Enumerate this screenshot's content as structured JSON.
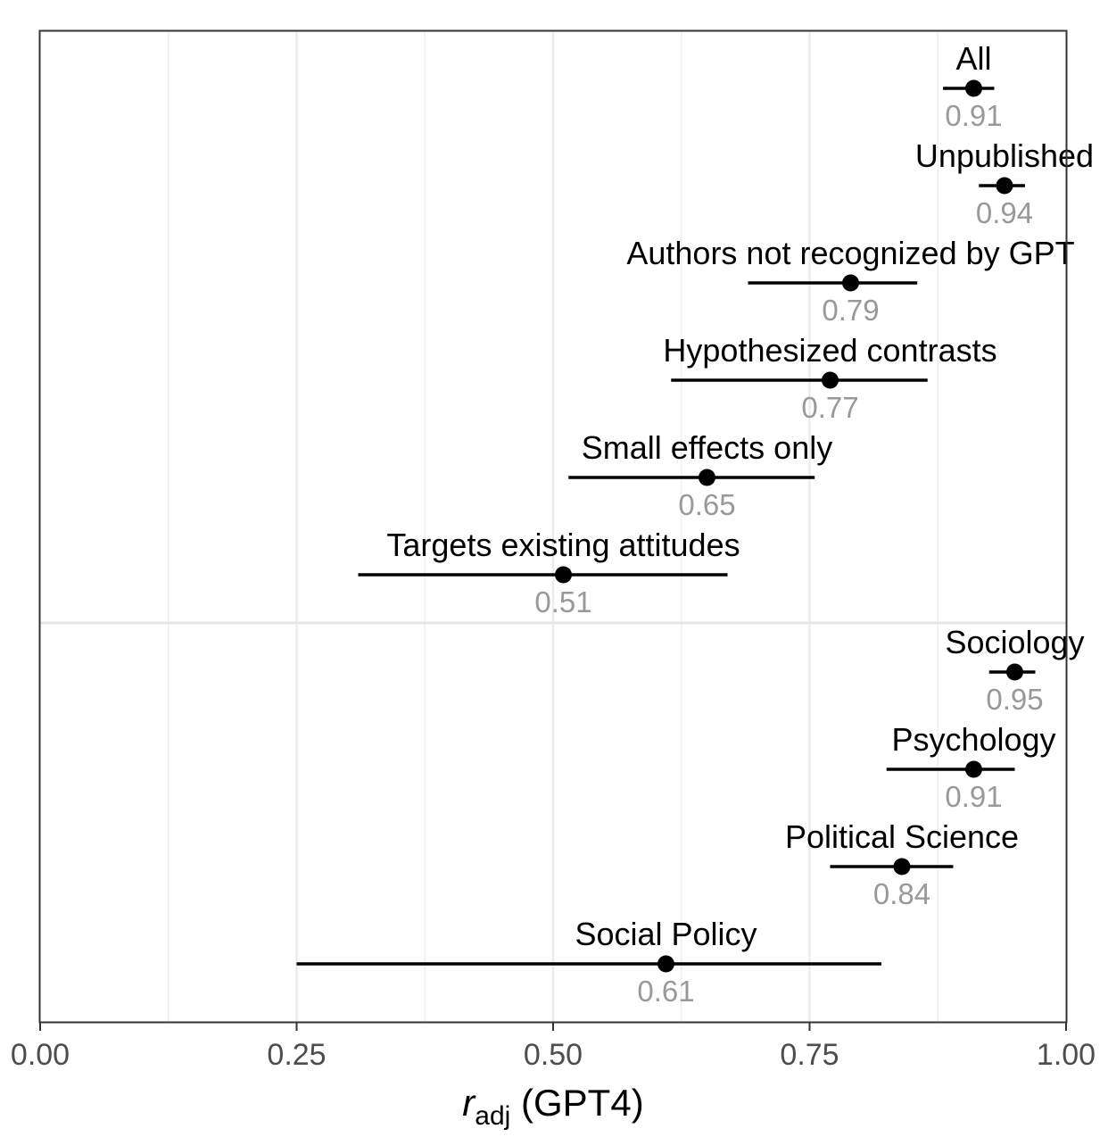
{
  "chart_data": {
    "type": "scatter",
    "subtype": "point-range",
    "xlabel": {
      "main": "r",
      "sub": "adj",
      "suffix": " (GPT4)"
    },
    "xlim": [
      0,
      1
    ],
    "xticks": [
      0.0,
      0.25,
      0.5,
      0.75,
      1.0
    ],
    "xtick_labels": [
      "0.00",
      "0.25",
      "0.50",
      "0.75",
      "1.00"
    ],
    "grid": true,
    "legend": "none",
    "colors": {
      "point": "#000000",
      "value_label": "#999999",
      "grid": "#ebebeb",
      "panel_border": "#333333"
    },
    "groups": [
      {
        "rows": [
          {
            "label": "All",
            "value": 0.91,
            "value_label": "0.91",
            "lo": 0.88,
            "hi": 0.93
          },
          {
            "label": "Unpublished",
            "value": 0.94,
            "value_label": "0.94",
            "lo": 0.915,
            "hi": 0.96
          },
          {
            "label": "Authors not recognized by GPT",
            "value": 0.79,
            "value_label": "0.79",
            "lo": 0.69,
            "hi": 0.855
          },
          {
            "label": "Hypothesized contrasts",
            "value": 0.77,
            "value_label": "0.77",
            "lo": 0.615,
            "hi": 0.865
          },
          {
            "label": "Small effects only",
            "value": 0.65,
            "value_label": "0.65",
            "lo": 0.515,
            "hi": 0.755
          },
          {
            "label": "Targets existing attitudes",
            "value": 0.51,
            "value_label": "0.51",
            "lo": 0.31,
            "hi": 0.67
          }
        ]
      },
      {
        "rows": [
          {
            "label": "Sociology",
            "value": 0.95,
            "value_label": "0.95",
            "lo": 0.925,
            "hi": 0.97
          },
          {
            "label": "Psychology",
            "value": 0.91,
            "value_label": "0.91",
            "lo": 0.825,
            "hi": 0.95
          },
          {
            "label": "Political Science",
            "value": 0.84,
            "value_label": "0.84",
            "lo": 0.77,
            "hi": 0.89
          },
          {
            "label": "Social Policy",
            "value": 0.61,
            "value_label": "0.61",
            "lo": 0.25,
            "hi": 0.82
          }
        ]
      }
    ]
  }
}
